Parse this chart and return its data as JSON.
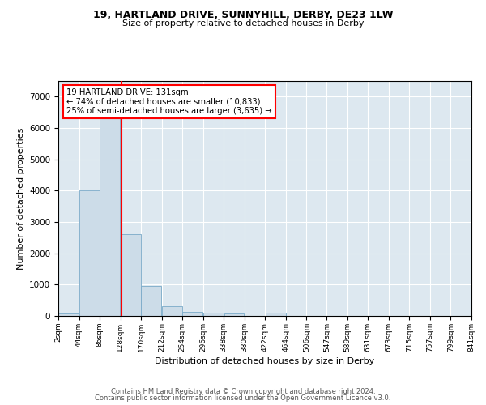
{
  "title1": "19, HARTLAND DRIVE, SUNNYHILL, DERBY, DE23 1LW",
  "title2": "Size of property relative to detached houses in Derby",
  "xlabel": "Distribution of detached houses by size in Derby",
  "ylabel": "Number of detached properties",
  "bar_color": "#ccdce8",
  "bar_edge_color": "#7aaac8",
  "bg_color": "#dde8f0",
  "grid_color": "#ffffff",
  "annotation_line1": "19 HARTLAND DRIVE: 131sqm",
  "annotation_line2": "← 74% of detached houses are smaller (10,833)",
  "annotation_line3": "25% of semi-detached houses are larger (3,635) →",
  "red_line_x": 131,
  "bins": [
    2,
    44,
    86,
    128,
    170,
    212,
    254,
    296,
    338,
    380,
    422,
    464,
    506,
    547,
    589,
    631,
    673,
    715,
    757,
    799,
    841
  ],
  "bar_heights": [
    80,
    4000,
    6500,
    2600,
    950,
    300,
    120,
    100,
    80,
    0,
    100,
    0,
    0,
    0,
    0,
    0,
    0,
    0,
    0,
    0
  ],
  "tick_labels": [
    "2sqm",
    "44sqm",
    "86sqm",
    "128sqm",
    "170sqm",
    "212sqm",
    "254sqm",
    "296sqm",
    "338sqm",
    "380sqm",
    "422sqm",
    "464sqm",
    "506sqm",
    "547sqm",
    "589sqm",
    "631sqm",
    "673sqm",
    "715sqm",
    "757sqm",
    "799sqm",
    "841sqm"
  ],
  "ylim": [
    0,
    7500
  ],
  "yticks": [
    0,
    1000,
    2000,
    3000,
    4000,
    5000,
    6000,
    7000
  ],
  "footer1": "Contains HM Land Registry data © Crown copyright and database right 2024.",
  "footer2": "Contains public sector information licensed under the Open Government Licence v3.0."
}
